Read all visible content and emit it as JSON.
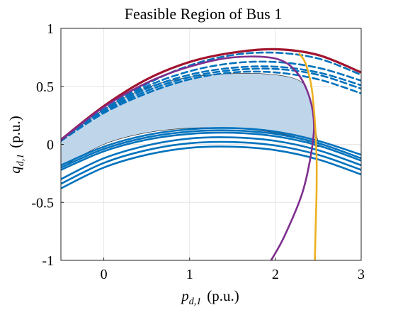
{
  "chart_data": {
    "type": "line",
    "title": "Feasible Region of Bus 1",
    "xlabel": "p_{d,1} (p.u.)",
    "ylabel": "q_{d,1} (p.u.)",
    "xlabel_parts": {
      "var": "p",
      "sub": "d,1",
      "unit": "(p.u.)"
    },
    "ylabel_parts": {
      "var": "q",
      "sub": "d,1",
      "unit": "(p.u.)"
    },
    "xlim": [
      -0.5,
      3
    ],
    "ylim": [
      -1,
      1
    ],
    "xticks": [
      0,
      1,
      2,
      3
    ],
    "xtick_labels": [
      "0",
      "1",
      "2",
      "3"
    ],
    "yticks": [
      -1,
      -0.5,
      0,
      0.5,
      1
    ],
    "ytick_labels": [
      "-1",
      "-0.5",
      "0",
      "0.5",
      "1"
    ],
    "grid": true,
    "colors": {
      "region_fill": "#bed5ea",
      "blue_curves": "#0072bd",
      "upper_boundary": "#a2142f",
      "purple_curve": "#7e2f8e",
      "orange_curve": "#edb120"
    },
    "feasible_region": {
      "upper": {
        "x": [
          -0.5,
          0,
          0.5,
          1,
          1.5,
          2,
          2.3
        ],
        "y": [
          0.03,
          0.3,
          0.49,
          0.58,
          0.61,
          0.6,
          0.54
        ]
      },
      "right": {
        "x": [
          2.3,
          2.4,
          2.45,
          2.48,
          2.5
        ],
        "y": [
          0.54,
          0.4,
          0.25,
          0.08,
          -0.02
        ]
      },
      "lower": {
        "x": [
          2.5,
          2.3,
          2,
          1.5,
          1,
          0.5,
          0,
          -0.5
        ],
        "y": [
          -0.02,
          0.05,
          0.1,
          0.14,
          0.14,
          0.1,
          0.0,
          -0.2
        ]
      }
    },
    "series": [
      {
        "style": "solid",
        "color": "blue_curves",
        "x": [
          -0.5,
          0,
          0.5,
          1,
          1.5,
          2,
          2.5,
          3
        ],
        "y": [
          -0.18,
          -0.02,
          0.08,
          0.13,
          0.14,
          0.11,
          0.03,
          -0.09
        ]
      },
      {
        "style": "solid",
        "color": "blue_curves",
        "x": [
          -0.5,
          0,
          0.5,
          1,
          1.5,
          2,
          2.5,
          3
        ],
        "y": [
          -0.2,
          -0.04,
          0.06,
          0.11,
          0.12,
          0.09,
          0.01,
          -0.12
        ]
      },
      {
        "style": "solid",
        "color": "blue_curves",
        "x": [
          -0.5,
          0,
          0.5,
          1,
          1.5,
          2,
          2.5,
          3
        ],
        "y": [
          -0.22,
          -0.06,
          0.04,
          0.09,
          0.1,
          0.07,
          -0.01,
          -0.14
        ]
      },
      {
        "style": "solid",
        "color": "blue_curves",
        "x": [
          -0.5,
          0,
          0.5,
          1,
          1.5,
          2,
          2.5,
          3
        ],
        "y": [
          -0.3,
          -0.12,
          -0.01,
          0.05,
          0.06,
          0.03,
          -0.05,
          -0.18
        ]
      },
      {
        "style": "solid",
        "color": "blue_curves",
        "x": [
          -0.5,
          0,
          0.5,
          1,
          1.5,
          2,
          2.5,
          3
        ],
        "y": [
          -0.34,
          -0.16,
          -0.05,
          0.01,
          0.02,
          -0.01,
          -0.09,
          -0.22
        ]
      },
      {
        "style": "solid",
        "color": "blue_curves",
        "x": [
          -0.5,
          0,
          0.5,
          1,
          1.5,
          2,
          2.5,
          3
        ],
        "y": [
          -0.38,
          -0.2,
          -0.09,
          -0.03,
          -0.02,
          -0.05,
          -0.13,
          -0.26
        ]
      },
      {
        "style": "dashed",
        "color": "blue_curves",
        "x": [
          -0.5,
          0,
          0.5,
          1,
          1.5,
          2,
          2.5,
          3
        ],
        "y": [
          0.03,
          0.3,
          0.5,
          0.63,
          0.7,
          0.71,
          0.66,
          0.55
        ]
      },
      {
        "style": "dashed",
        "color": "blue_curves",
        "x": [
          -0.5,
          0,
          0.5,
          1,
          1.5,
          2,
          2.5,
          3
        ],
        "y": [
          0.03,
          0.29,
          0.48,
          0.6,
          0.66,
          0.67,
          0.62,
          0.51
        ]
      },
      {
        "style": "dashed",
        "color": "blue_curves",
        "x": [
          -0.5,
          0,
          0.5,
          1,
          1.5,
          2,
          2.5,
          3
        ],
        "y": [
          0.03,
          0.28,
          0.46,
          0.58,
          0.64,
          0.65,
          0.6,
          0.48
        ]
      },
      {
        "style": "dashed",
        "color": "blue_curves",
        "x": [
          -0.5,
          0,
          0.5,
          1,
          1.5,
          2,
          2.5,
          3
        ],
        "y": [
          0.03,
          0.3,
          0.52,
          0.68,
          0.77,
          0.79,
          0.74,
          0.6
        ]
      },
      {
        "style": "dashed",
        "color": "blue_curves",
        "x": [
          -0.5,
          0,
          0.5,
          1,
          1.5,
          2,
          2.5,
          3
        ],
        "y": [
          0.03,
          0.27,
          0.44,
          0.56,
          0.62,
          0.62,
          0.56,
          0.44
        ]
      },
      {
        "style": "solid",
        "color": "upper_boundary",
        "x": [
          -0.5,
          0,
          0.5,
          1,
          1.5,
          2,
          2.5,
          3
        ],
        "y": [
          0.04,
          0.33,
          0.56,
          0.71,
          0.79,
          0.82,
          0.77,
          0.62
        ]
      },
      {
        "style": "solid",
        "color": "purple_curve",
        "x": [
          -0.5,
          0,
          0.5,
          1,
          1.5,
          2,
          2.25,
          2.4,
          2.45,
          2.4,
          2.3,
          2.1,
          1.95
        ],
        "y": [
          0.04,
          0.32,
          0.53,
          0.67,
          0.75,
          0.74,
          0.62,
          0.4,
          0.15,
          -0.15,
          -0.45,
          -0.8,
          -1
        ]
      },
      {
        "style": "solid",
        "color": "orange_curve",
        "x": [
          2.28,
          2.35,
          2.42,
          2.46,
          2.48,
          2.48,
          2.47,
          2.46
        ],
        "y": [
          0.78,
          0.7,
          0.5,
          0.2,
          -0.1,
          -0.4,
          -0.7,
          -1
        ]
      }
    ]
  }
}
